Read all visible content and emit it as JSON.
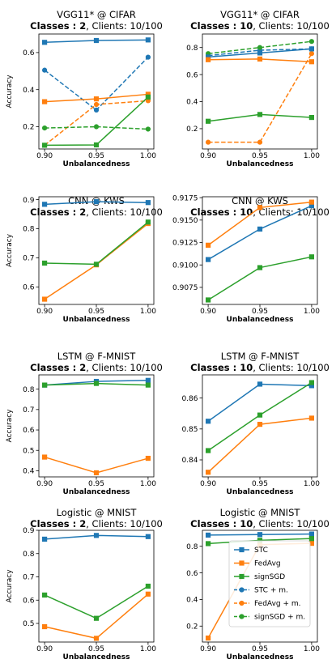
{
  "legend": {
    "entries": [
      {
        "label": "STC",
        "color": "#1f77b4",
        "style": "solid",
        "marker": "square"
      },
      {
        "label": "FedAvg",
        "color": "#ff7f0e",
        "style": "solid",
        "marker": "square"
      },
      {
        "label": "signSGD",
        "color": "#2ca02c",
        "style": "solid",
        "marker": "square"
      },
      {
        "label": "STC + m.",
        "color": "#1f77b4",
        "style": "dashed",
        "marker": "circle"
      },
      {
        "label": "FedAvg + m.",
        "color": "#ff7f0e",
        "style": "dashed",
        "marker": "circle"
      },
      {
        "label": "signSGD + m.",
        "color": "#2ca02c",
        "style": "dashed",
        "marker": "circle"
      }
    ],
    "placement": "lower-right of bottom-right panel"
  },
  "chart_data": [
    {
      "type": "line",
      "title": "VGG11* @ CIFAR",
      "subtitle_bold": "Classes : 2",
      "subtitle_rest": ", Clients: 10/100",
      "xlabel": "Unbalancedness",
      "ylabel": "Accuracy",
      "x": [
        0.9,
        0.95,
        1.0
      ],
      "xticks": [
        "0.90",
        "0.95",
        "1.00"
      ],
      "ylim": [
        0.08,
        0.7
      ],
      "yticks": [
        0.2,
        0.4,
        0.6
      ],
      "ytick_labels": [
        "0.2",
        "0.4",
        "0.6"
      ],
      "series": [
        {
          "name": "STC",
          "values": [
            0.655,
            0.665,
            0.668
          ]
        },
        {
          "name": "FedAvg",
          "values": [
            0.335,
            0.35,
            0.375
          ]
        },
        {
          "name": "signSGD",
          "values": [
            0.1,
            0.102,
            0.36
          ]
        },
        {
          "name": "STC + m.",
          "values": [
            0.505,
            0.29,
            0.575
          ]
        },
        {
          "name": "FedAvg + m.",
          "values": [
            0.1,
            0.32,
            0.34
          ]
        },
        {
          "name": "signSGD + m.",
          "values": [
            0.193,
            0.2,
            0.187
          ]
        }
      ]
    },
    {
      "type": "line",
      "title": "VGG11* @ CIFAR",
      "subtitle_bold": "Classes : 10",
      "subtitle_rest": ", Clients: 10/100",
      "xlabel": "Unbalancedness",
      "ylabel": "",
      "x": [
        0.9,
        0.95,
        1.0
      ],
      "xticks": [
        "0.90",
        "0.95",
        "1.00"
      ],
      "ylim": [
        0.05,
        0.9
      ],
      "yticks": [
        0.2,
        0.4,
        0.6,
        0.8
      ],
      "ytick_labels": [
        "0.2",
        "0.4",
        "0.6",
        "0.8"
      ],
      "series": [
        {
          "name": "STC",
          "values": [
            0.73,
            0.76,
            0.79
          ]
        },
        {
          "name": "FedAvg",
          "values": [
            0.71,
            0.715,
            0.695
          ]
        },
        {
          "name": "signSGD",
          "values": [
            0.255,
            0.305,
            0.283
          ]
        },
        {
          "name": "STC + m.",
          "values": [
            0.74,
            0.78,
            0.79
          ]
        },
        {
          "name": "FedAvg + m.",
          "values": [
            0.1,
            0.1,
            0.755
          ]
        },
        {
          "name": "signSGD + m.",
          "values": [
            0.755,
            0.8,
            0.845
          ]
        }
      ]
    },
    {
      "type": "line",
      "title": "CNN @ KWS",
      "subtitle_bold": "Classes : 2",
      "subtitle_rest": ", Clients: 10/100",
      "xlabel": "Unbalancedness",
      "ylabel": "Accuracy",
      "x": [
        0.9,
        0.95,
        1.0
      ],
      "xticks": [
        "0.90",
        "0.95",
        "1.00"
      ],
      "ylim": [
        0.54,
        0.91
      ],
      "yticks": [
        0.6,
        0.7,
        0.8,
        0.9
      ],
      "ytick_labels": [
        "0.6",
        "0.7",
        "0.8",
        "0.9"
      ],
      "series": [
        {
          "name": "STC",
          "values": [
            0.884,
            0.893,
            0.89
          ]
        },
        {
          "name": "FedAvg",
          "values": [
            0.558,
            0.676,
            0.818
          ]
        },
        {
          "name": "signSGD",
          "values": [
            0.682,
            0.678,
            0.823
          ]
        }
      ]
    },
    {
      "type": "line",
      "title": "CNN @ KWS",
      "subtitle_bold": "Classes : 10",
      "subtitle_rest": ", Clients: 10/100",
      "xlabel": "Unbalancedness",
      "ylabel": "",
      "x": [
        0.9,
        0.95,
        1.0
      ],
      "xticks": [
        "0.90",
        "0.95",
        "1.00"
      ],
      "ylim": [
        0.9056,
        0.9176
      ],
      "yticks": [
        0.9075,
        0.91,
        0.9125,
        0.915,
        0.9175
      ],
      "ytick_labels": [
        "0.9075",
        "0.9100",
        "0.9125",
        "0.9150",
        "0.9175"
      ],
      "series": [
        {
          "name": "STC",
          "values": [
            0.9106,
            0.914,
            0.9166
          ]
        },
        {
          "name": "FedAvg",
          "values": [
            0.9122,
            0.9164,
            0.917
          ]
        },
        {
          "name": "signSGD",
          "values": [
            0.9061,
            0.9097,
            0.9109
          ]
        }
      ]
    },
    {
      "type": "line",
      "title": "LSTM @ F-MNIST",
      "subtitle_bold": "Classes : 2",
      "subtitle_rest": ", Clients: 10/100",
      "xlabel": "Unbalancedness",
      "ylabel": "Accuracy",
      "x": [
        0.9,
        0.95,
        1.0
      ],
      "xticks": [
        "0.90",
        "0.95",
        "1.00"
      ],
      "ylim": [
        0.37,
        0.87
      ],
      "yticks": [
        0.4,
        0.5,
        0.6,
        0.7,
        0.8
      ],
      "ytick_labels": [
        "0.4",
        "0.5",
        "0.6",
        "0.7",
        "0.8"
      ],
      "series": [
        {
          "name": "STC",
          "values": [
            0.82,
            0.838,
            0.843
          ]
        },
        {
          "name": "FedAvg",
          "values": [
            0.467,
            0.39,
            0.461
          ]
        },
        {
          "name": "signSGD",
          "values": [
            0.82,
            0.828,
            0.82
          ]
        }
      ]
    },
    {
      "type": "line",
      "title": "LSTM @ F-MNIST",
      "subtitle_bold": "Classes : 10",
      "subtitle_rest": ", Clients: 10/100",
      "xlabel": "Unbalancedness",
      "ylabel": "",
      "x": [
        0.9,
        0.95,
        1.0
      ],
      "xticks": [
        "0.90",
        "0.95",
        "1.00"
      ],
      "ylim": [
        0.8345,
        0.8675
      ],
      "yticks": [
        0.84,
        0.85,
        0.86
      ],
      "ytick_labels": [
        "0.84",
        "0.85",
        "0.86"
      ],
      "series": [
        {
          "name": "STC",
          "values": [
            0.8525,
            0.8645,
            0.864
          ]
        },
        {
          "name": "FedAvg",
          "values": [
            0.836,
            0.8515,
            0.8535
          ]
        },
        {
          "name": "signSGD",
          "values": [
            0.843,
            0.8545,
            0.865
          ]
        }
      ]
    },
    {
      "type": "line",
      "title": "Logistic @ MNIST",
      "subtitle_bold": "Classes : 2",
      "subtitle_rest": ", Clients: 10/100",
      "xlabel": "Unbalancedness",
      "ylabel": "Accuracy",
      "x": [
        0.9,
        0.95,
        1.0
      ],
      "xticks": [
        "0.90",
        "0.95",
        "1.00"
      ],
      "ylim": [
        0.42,
        0.9
      ],
      "yticks": [
        0.5,
        0.6,
        0.7,
        0.8,
        0.9
      ],
      "ytick_labels": [
        "0.5",
        "0.6",
        "0.7",
        "0.8",
        "0.9"
      ],
      "series": [
        {
          "name": "STC",
          "values": [
            0.862,
            0.878,
            0.873
          ]
        },
        {
          "name": "FedAvg",
          "values": [
            0.486,
            0.436,
            0.626
          ]
        },
        {
          "name": "signSGD",
          "values": [
            0.622,
            0.522,
            0.66
          ]
        }
      ]
    },
    {
      "type": "line",
      "title": "Logistic @ MNIST",
      "subtitle_bold": "Classes : 10",
      "subtitle_rest": ", Clients: 10/100",
      "xlabel": "Unbalancedness",
      "ylabel": "",
      "x": [
        0.9,
        0.95,
        1.0
      ],
      "xticks": [
        "0.90",
        "0.95",
        "1.00"
      ],
      "ylim": [
        0.08,
        0.92
      ],
      "yticks": [
        0.2,
        0.4,
        0.6,
        0.8
      ],
      "ytick_labels": [
        "0.2",
        "0.4",
        "0.6",
        "0.8"
      ],
      "series": [
        {
          "name": "STC",
          "values": [
            0.884,
            0.888,
            0.892
          ]
        },
        {
          "name": "FedAvg",
          "values": [
            0.11,
            0.812,
            0.822
          ]
        },
        {
          "name": "signSGD",
          "values": [
            0.82,
            0.845,
            0.858
          ]
        }
      ]
    }
  ]
}
